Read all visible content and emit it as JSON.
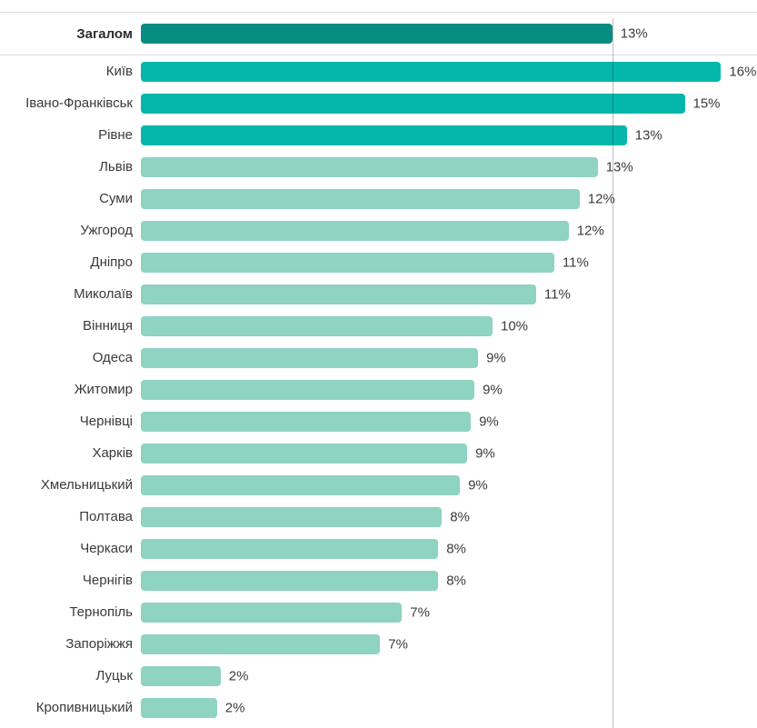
{
  "chart_data": {
    "type": "bar",
    "orientation": "horizontal",
    "title": "",
    "unit": "%",
    "grid": false,
    "legend": false,
    "xlim": [
      0,
      17
    ],
    "reference_line": {
      "value": 13
    },
    "categories": [
      "Загалом",
      "Київ",
      "Івано-Франківськ",
      "Рівне",
      "Львів",
      "Суми",
      "Ужгород",
      "Дніпро",
      "Миколаїв",
      "Вінниця",
      "Одеса",
      "Житомир",
      "Чернівці",
      "Харків",
      "Хмельницький",
      "Полтава",
      "Черкаси",
      "Чернігів",
      "Тернопіль",
      "Запоріжжя",
      "Луцьк",
      "Кропивницький"
    ],
    "values": [
      13,
      16,
      15,
      13,
      13,
      12,
      12,
      11,
      11,
      10,
      9,
      9,
      9,
      9,
      9,
      8,
      8,
      8,
      7,
      7,
      2,
      2
    ],
    "value_labels": [
      "13%",
      "16%",
      "15%",
      "13%",
      "13%",
      "12%",
      "12%",
      "11%",
      "11%",
      "10%",
      "9%",
      "9%",
      "9%",
      "9%",
      "9%",
      "8%",
      "8%",
      "8%",
      "7%",
      "7%",
      "2%",
      "2%"
    ],
    "rows": [
      {
        "label": "Загалом",
        "value": 13,
        "display": "13%",
        "bar_pct": 13.0,
        "tone": "total"
      },
      {
        "label": "Київ",
        "value": 16,
        "display": "16%",
        "bar_pct": 16.0,
        "tone": "high"
      },
      {
        "label": "Івано-Франківськ",
        "value": 15,
        "display": "15%",
        "bar_pct": 15.0,
        "tone": "high"
      },
      {
        "label": "Рівне",
        "value": 13,
        "display": "13%",
        "bar_pct": 13.4,
        "tone": "high"
      },
      {
        "label": "Львів",
        "value": 13,
        "display": "13%",
        "bar_pct": 12.6,
        "tone": "normal"
      },
      {
        "label": "Суми",
        "value": 12,
        "display": "12%",
        "bar_pct": 12.1,
        "tone": "normal"
      },
      {
        "label": "Ужгород",
        "value": 12,
        "display": "12%",
        "bar_pct": 11.8,
        "tone": "normal"
      },
      {
        "label": "Дніпро",
        "value": 11,
        "display": "11%",
        "bar_pct": 11.4,
        "tone": "normal"
      },
      {
        "label": "Миколаїв",
        "value": 11,
        "display": "11%",
        "bar_pct": 10.9,
        "tone": "normal"
      },
      {
        "label": "Вінниця",
        "value": 10,
        "display": "10%",
        "bar_pct": 9.7,
        "tone": "normal"
      },
      {
        "label": "Одеса",
        "value": 9,
        "display": "9%",
        "bar_pct": 9.3,
        "tone": "normal"
      },
      {
        "label": "Житомир",
        "value": 9,
        "display": "9%",
        "bar_pct": 9.2,
        "tone": "normal"
      },
      {
        "label": "Чернівці",
        "value": 9,
        "display": "9%",
        "bar_pct": 9.1,
        "tone": "normal"
      },
      {
        "label": "Харків",
        "value": 9,
        "display": "9%",
        "bar_pct": 9.0,
        "tone": "normal"
      },
      {
        "label": "Хмельницький",
        "value": 9,
        "display": "9%",
        "bar_pct": 8.8,
        "tone": "normal"
      },
      {
        "label": "Полтава",
        "value": 8,
        "display": "8%",
        "bar_pct": 8.3,
        "tone": "normal"
      },
      {
        "label": "Черкаси",
        "value": 8,
        "display": "8%",
        "bar_pct": 8.2,
        "tone": "normal"
      },
      {
        "label": "Чернігів",
        "value": 8,
        "display": "8%",
        "bar_pct": 8.2,
        "tone": "normal"
      },
      {
        "label": "Тернопіль",
        "value": 7,
        "display": "7%",
        "bar_pct": 7.2,
        "tone": "normal"
      },
      {
        "label": "Запоріжжя",
        "value": 7,
        "display": "7%",
        "bar_pct": 6.6,
        "tone": "normal"
      },
      {
        "label": "Луцьк",
        "value": 2,
        "display": "2%",
        "bar_pct": 2.2,
        "tone": "normal"
      },
      {
        "label": "Кропивницький",
        "value": 2,
        "display": "2%",
        "bar_pct": 2.1,
        "tone": "normal"
      }
    ]
  },
  "colors": {
    "total_bar": "#098d83",
    "high_bar": "#05b7ab",
    "normal_bar": "#8fd3c2",
    "divider": "#dddddd",
    "label_text": "#3a3a3a",
    "value_text": "#3b3b3b",
    "background": "#ffffff"
  }
}
